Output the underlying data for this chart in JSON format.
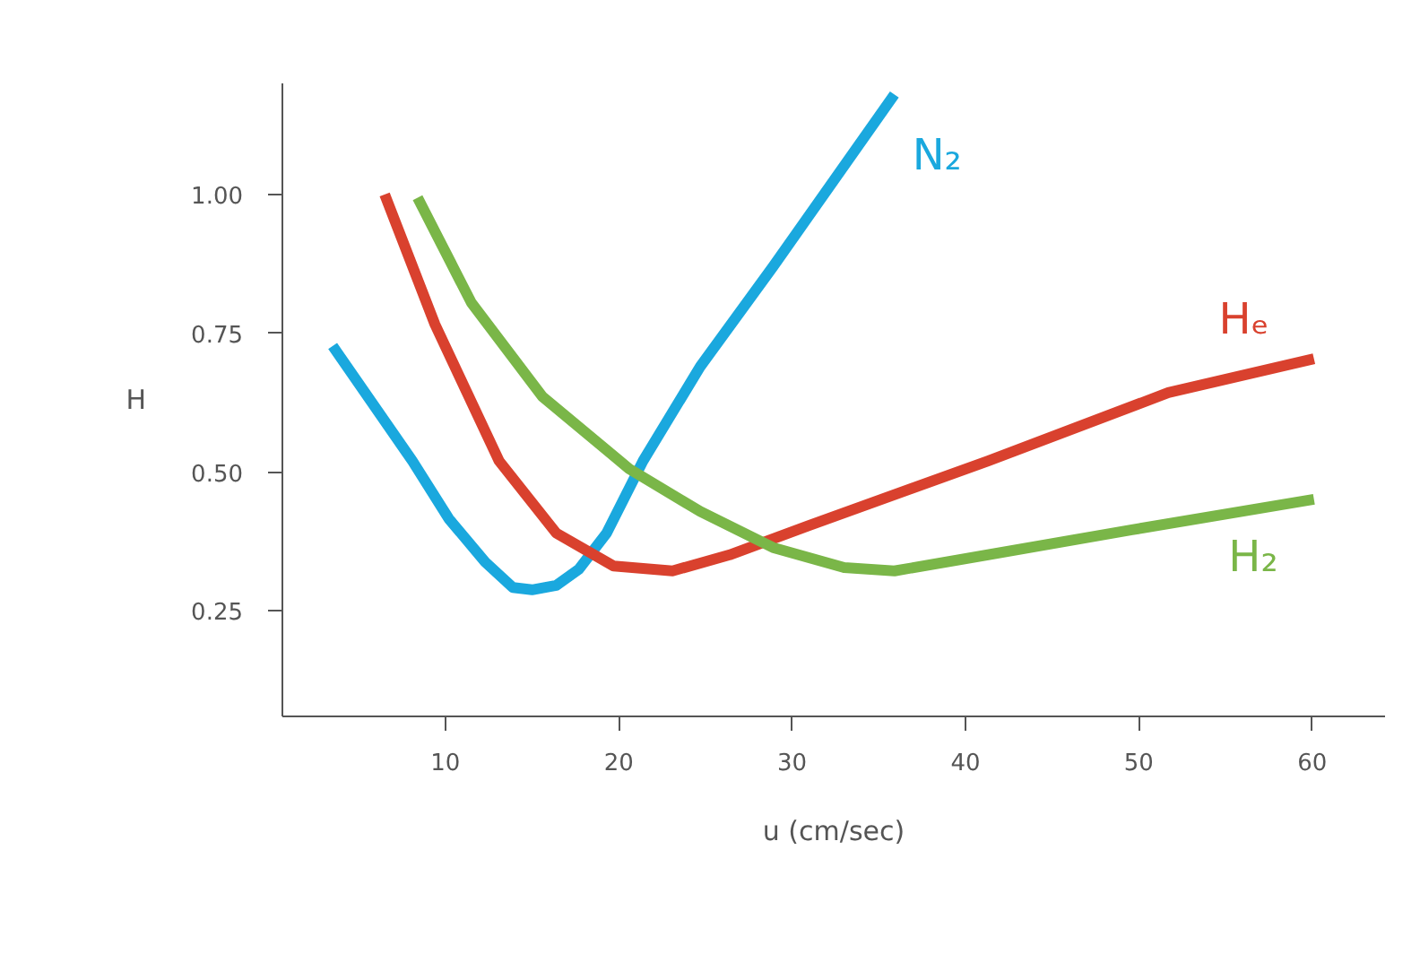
{
  "chart_data": {
    "type": "line",
    "xlabel": "u (cm/sec)",
    "ylabel": "H",
    "xlim": [
      0.6,
      64.2
    ],
    "ylim": [
      0.06,
      1.2
    ],
    "xticks": [
      10,
      20,
      30,
      40,
      50,
      60
    ],
    "yticks": [
      {
        "value": 0.25,
        "label": "0.25"
      },
      {
        "value": 0.5,
        "label": "0.50"
      },
      {
        "value": 0.75,
        "label": "0.75"
      },
      {
        "value": 1.0,
        "label": "1.00"
      }
    ],
    "grid": false,
    "legend": false,
    "marker": "none",
    "line_style": "solid",
    "series": [
      {
        "name": "N₂",
        "color": "#1aa8de",
        "x": [
          3.5,
          8.1,
          10.2,
          12.3,
          13.9,
          15.0,
          16.4,
          17.7,
          19.3,
          21.4,
          24.7,
          28.9,
          35.9
        ],
        "values": [
          0.727,
          0.52,
          0.416,
          0.338,
          0.292,
          0.288,
          0.296,
          0.325,
          0.39,
          0.52,
          0.69,
          0.87,
          1.18
        ]
      },
      {
        "name": "Hₑ",
        "color": "#d9412e",
        "x": [
          6.5,
          9.4,
          13.1,
          16.4,
          19.7,
          23.1,
          26.4,
          30.9,
          41.3,
          51.7,
          60.1
        ],
        "values": [
          1.0,
          0.766,
          0.52,
          0.39,
          0.331,
          0.322,
          0.351,
          0.403,
          0.52,
          0.643,
          0.704
        ]
      },
      {
        "name": "H₂",
        "color": "#7ab648",
        "x": [
          8.4,
          11.5,
          15.6,
          20.6,
          24.7,
          28.9,
          33.0,
          35.9,
          41.3,
          49.6,
          60.1
        ],
        "values": [
          0.994,
          0.805,
          0.636,
          0.506,
          0.429,
          0.364,
          0.328,
          0.322,
          0.351,
          0.396,
          0.451
        ]
      }
    ]
  }
}
